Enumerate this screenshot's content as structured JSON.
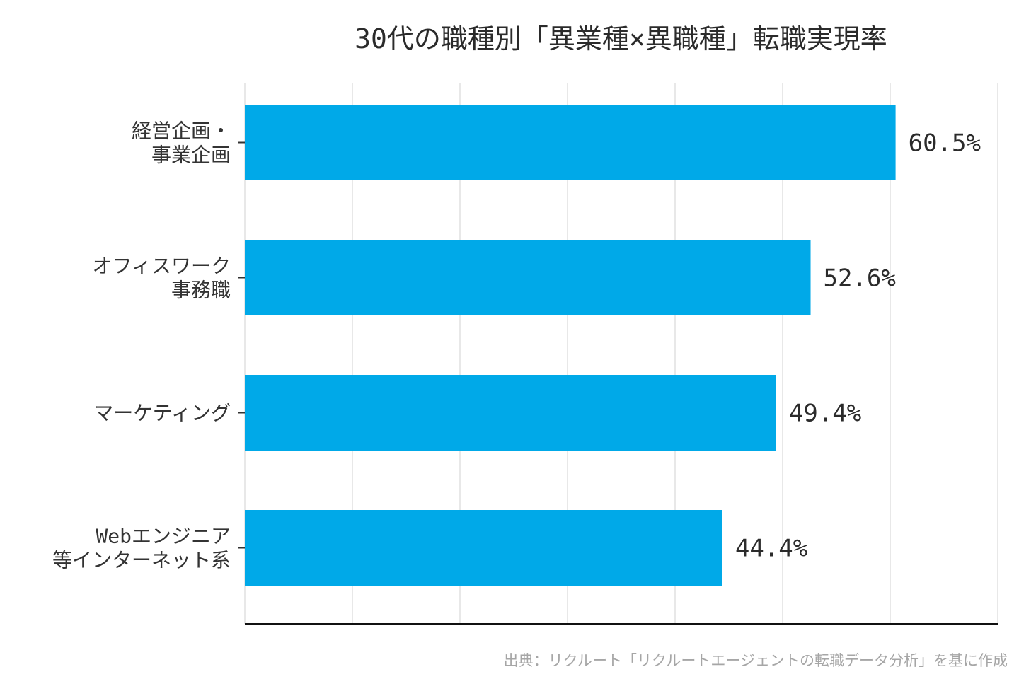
{
  "chart_data": {
    "type": "bar",
    "orientation": "horizontal",
    "title": "30代の職種別「異業種×異職種」転職実現率",
    "categories": [
      [
        "経営企画・",
        "事業企画"
      ],
      [
        "オフィスワーク",
        "事務職"
      ],
      [
        "マーケティング"
      ],
      [
        "Webエンジニア",
        "等インターネット系"
      ]
    ],
    "values": [
      60.5,
      52.6,
      49.4,
      44.4
    ],
    "value_labels": [
      "60.5%",
      "52.6%",
      "49.4%",
      "44.4%"
    ],
    "xlim": [
      0,
      70
    ],
    "grid": "vertical",
    "bar_color": "#00a9e8",
    "xlabel": "",
    "ylabel": ""
  },
  "source_note": "出典：リクルート「リクルートエージェントの転職データ分析」を基に作成"
}
